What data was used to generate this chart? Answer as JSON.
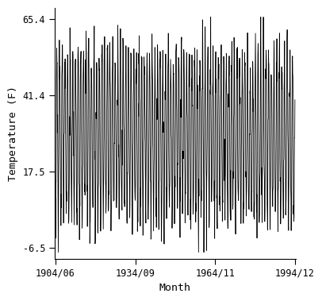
{
  "title": "",
  "xlabel": "Month",
  "ylabel": "Temperature (F)",
  "xlim_start_year": 1904,
  "xlim_start_month": 6,
  "xlim_end_year": 1994,
  "xlim_end_month": 12,
  "ylim": [
    -10.0,
    69.0
  ],
  "yticks": [
    -6.5,
    17.5,
    41.4,
    65.4
  ],
  "xtick_labels": [
    "1904/06",
    "1934/09",
    "1964/11",
    "1994/12"
  ],
  "xtick_years": [
    1904,
    1934,
    1964,
    1994
  ],
  "xtick_months": [
    6,
    9,
    11,
    12
  ],
  "line_color": "#000000",
  "line_width": 0.6,
  "bg_color": "#ffffff"
}
